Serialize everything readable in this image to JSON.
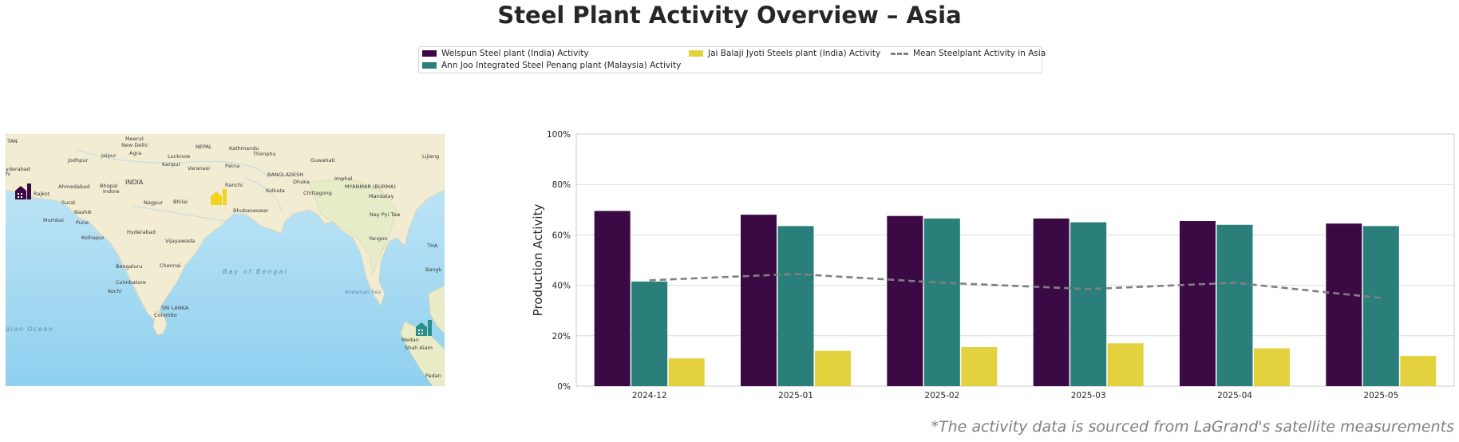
{
  "title": "Steel Plant Activity Overview – Asia",
  "footnote": "*The activity data is sourced from LaGrand's satellite measurements",
  "legend": {
    "items": [
      {
        "label": "Welspun Steel plant (India) Activity",
        "color": "#3b0a45"
      },
      {
        "label": "Ann Joo Integrated Steel Penang plant (Malaysia) Activity",
        "color": "#2a7f7a"
      },
      {
        "label": "Jai Balaji Jyoti Steels plant (India) Activity",
        "color": "#e3d23e"
      },
      {
        "label": "Mean Steelplant Activity in Asia",
        "color": "#808080"
      }
    ]
  },
  "map": {
    "labels": [
      "TAN",
      "Meerut",
      "New Delhi",
      "Jaipur",
      "Agra",
      "Lucknow",
      "NEPAL",
      "Kathmandu",
      "Thimphu",
      "Guwahati",
      "Jodhpur",
      "Kanpur",
      "Patna",
      "Varanasi",
      "BANGLADESH",
      "Dhaka",
      "Imphal",
      "yderabad",
      "hi",
      "Ahmedabad",
      "INDIA",
      "Ranchi",
      "Kolkata",
      "Chittagong",
      "MYANMAR (BURMA)",
      "Mandalay",
      "Rajkot",
      "Bhopal",
      "Indore",
      "Surat",
      "Nagpur",
      "Bhilai",
      "Nashik",
      "Bhubaneswar",
      "Mumbai",
      "Pune",
      "Nay Pyi Taw",
      "Hyderabad",
      "Kolhapur",
      "Vijayawada",
      "Yangon",
      "Bengaluru",
      "Chennai",
      "Bay of Bengal",
      "Coimbatore",
      "Kochi",
      "Andaman Sea",
      "SRI LANKA",
      "Colombo",
      "dian Ocean",
      "Medan",
      "Shah Alam",
      "Lijiang",
      "THA",
      "Bangk",
      "Padan"
    ],
    "plants": [
      {
        "name": "Welspun Steel plant",
        "color": "#3b0a45"
      },
      {
        "name": "Jai Balaji Jyoti Steels plant",
        "color": "#f0d520"
      },
      {
        "name": "Ann Joo Integrated Steel Penang plant",
        "color": "#2a8f86"
      }
    ]
  },
  "chart_data": {
    "type": "bar",
    "title": "",
    "xlabel": "",
    "ylabel": "Production Activity",
    "categories": [
      "2024-12",
      "2025-01",
      "2025-02",
      "2025-03",
      "2025-04",
      "2025-05"
    ],
    "series": [
      {
        "name": "Welspun Steel plant (India) Activity",
        "color": "#3b0a45",
        "values": [
          69.5,
          68,
          67.5,
          66.5,
          65.5,
          64.5
        ]
      },
      {
        "name": "Ann Joo Integrated Steel Penang plant (Malaysia) Activity",
        "color": "#2a7f7a",
        "values": [
          41.5,
          63.5,
          66.5,
          65,
          64,
          63.5
        ]
      },
      {
        "name": "Jai Balaji Jyoti Steels plant (India) Activity",
        "color": "#e3d23e",
        "values": [
          11,
          14,
          15.5,
          17,
          15,
          12
        ]
      }
    ],
    "line": {
      "name": "Mean Steelplant Activity in Asia",
      "color": "#808080",
      "style": "dashed",
      "values": [
        42,
        44.5,
        41,
        38.5,
        41,
        35
      ]
    },
    "ylim": [
      0,
      100
    ],
    "yticks": [
      "0%",
      "20%",
      "40%",
      "60%",
      "80%",
      "100%"
    ],
    "grid": true,
    "legend_position": "top-center"
  }
}
